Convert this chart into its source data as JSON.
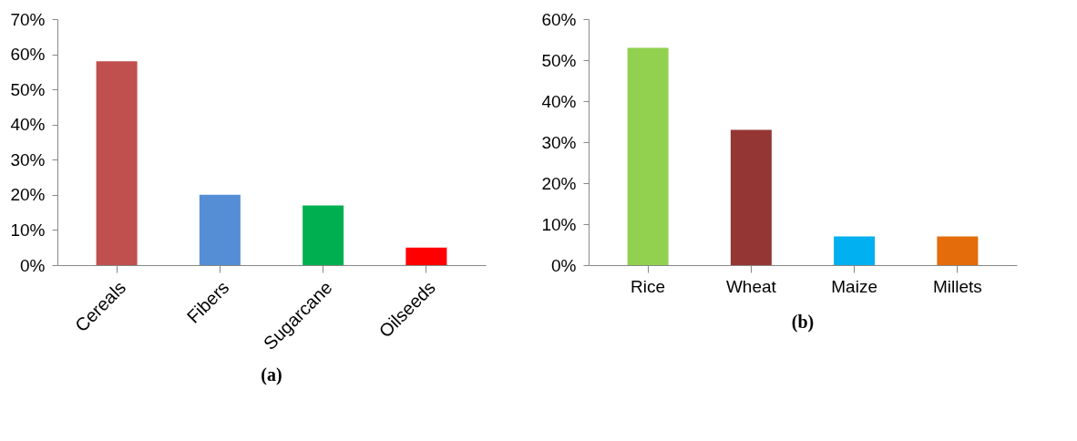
{
  "chart_data": [
    {
      "type": "bar",
      "title": "(a)",
      "categories": [
        "Cereals",
        "Fibers",
        "Sugarcane",
        "Oilseeds"
      ],
      "colors": [
        "#c0504d",
        "#558ed5",
        "#00b050",
        "#ff0000"
      ],
      "values": [
        58,
        20,
        17,
        5
      ],
      "ylim": [
        0,
        70
      ],
      "yticks": [
        {
          "value": 0,
          "label": "0%"
        },
        {
          "value": 10,
          "label": "10%"
        },
        {
          "value": 20,
          "label": "20%"
        },
        {
          "value": 30,
          "label": "30%"
        },
        {
          "value": 40,
          "label": "40%"
        },
        {
          "value": 50,
          "label": "50%"
        },
        {
          "value": 60,
          "label": "60%"
        },
        {
          "value": 70,
          "label": "70%"
        }
      ],
      "grid": false
    },
    {
      "type": "bar",
      "title": "(b)",
      "categories": [
        "Rice",
        "Wheat",
        "Maize",
        "Millets"
      ],
      "colors": [
        "#92d050",
        "#943634",
        "#00b0f0",
        "#e46c0a"
      ],
      "values": [
        53,
        33,
        7,
        7
      ],
      "ylim": [
        0,
        60
      ],
      "yticks": [
        {
          "value": 0,
          "label": "0%"
        },
        {
          "value": 10,
          "label": "10%"
        },
        {
          "value": 20,
          "label": "20%"
        },
        {
          "value": 30,
          "label": "30%"
        },
        {
          "value": 40,
          "label": "40%"
        },
        {
          "value": 50,
          "label": "50%"
        },
        {
          "value": 60,
          "label": "60%"
        }
      ],
      "grid": false
    }
  ]
}
